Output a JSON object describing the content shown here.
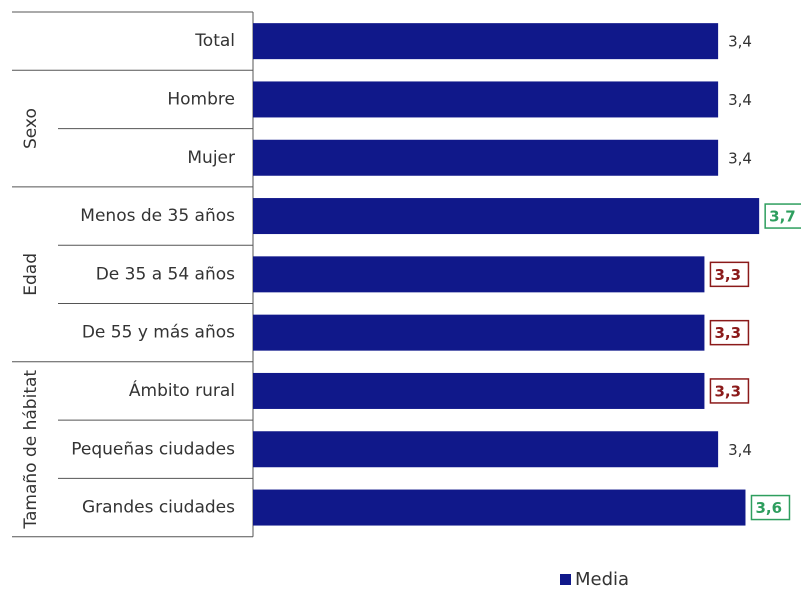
{
  "chart_data": {
    "type": "bar",
    "orientation": "horizontal",
    "categories": [
      "Total",
      "Hombre",
      "Mujer",
      "Menos de 35 años",
      "De 35 a 54 años",
      "De 55 y más años",
      "Ámbito rural",
      "Pequeñas ciudades",
      "Grandes ciudades"
    ],
    "category_groups": [
      null,
      "Sexo",
      "Sexo",
      "Edad",
      "Edad",
      "Edad",
      "Tamaño de hábitat",
      "Tamaño de hábitat",
      "Tamaño de hábitat"
    ],
    "series": [
      {
        "name": "Media",
        "color": "#10188a",
        "values": [
          3.4,
          3.4,
          3.4,
          3.7,
          3.3,
          3.3,
          3.3,
          3.4,
          3.6
        ],
        "value_labels": [
          "3,4",
          "3,4",
          "3,4",
          "3,7",
          "3,3",
          "3,3",
          "3,3",
          "3,4",
          "3,6"
        ],
        "value_label_colors": [
          null,
          null,
          null,
          "#2e9e5e",
          "#8b1a1a",
          "#8b1a1a",
          "#8b1a1a",
          null,
          "#2e9e5e"
        ]
      }
    ],
    "legend": "bottom"
  }
}
